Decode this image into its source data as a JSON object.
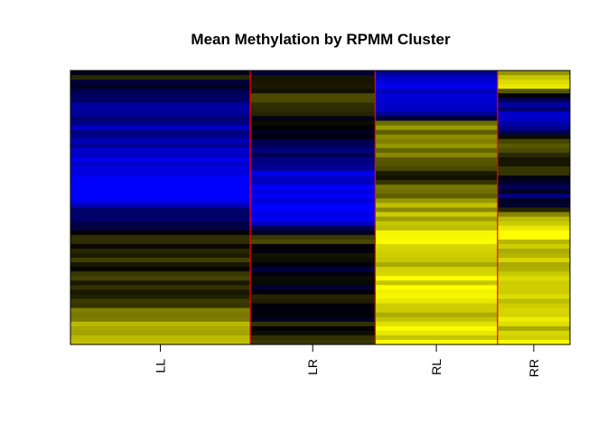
{
  "chart_data": {
    "type": "heatmap",
    "title": "Mean Methylation by RPMM Cluster",
    "xlabel": "",
    "ylabel": "",
    "columns": [
      {
        "label": "LL",
        "width_fraction": 0.36
      },
      {
        "label": "LR",
        "width_fraction": 0.25
      },
      {
        "label": "RL",
        "width_fraction": 0.245
      },
      {
        "label": "RR",
        "width_fraction": 0.145
      }
    ],
    "color_scale": {
      "low": "#0000ff",
      "mid": "#000000",
      "high": "#ffff00",
      "range": [
        0,
        1
      ]
    },
    "separator_color": "#ff0000",
    "row_count": 60,
    "rows_sorted_by": "LL",
    "profiles": {
      "LL": [
        [
          0,
          0.55
        ],
        [
          0.05,
          0.45
        ],
        [
          0.1,
          0.3
        ],
        [
          0.15,
          0.2
        ],
        [
          0.25,
          0.15
        ],
        [
          0.35,
          0.05
        ],
        [
          0.45,
          0.0
        ],
        [
          0.55,
          0.35
        ],
        [
          0.6,
          0.5
        ],
        [
          0.7,
          0.55
        ],
        [
          0.8,
          0.6
        ],
        [
          0.88,
          0.7
        ],
        [
          0.95,
          0.85
        ],
        [
          1,
          0.95
        ]
      ],
      "LR": [
        [
          0,
          0.45
        ],
        [
          0.05,
          0.55
        ],
        [
          0.1,
          0.6
        ],
        [
          0.15,
          0.58
        ],
        [
          0.25,
          0.4
        ],
        [
          0.35,
          0.15
        ],
        [
          0.45,
          0.0
        ],
        [
          0.55,
          0.05
        ],
        [
          0.6,
          0.6
        ],
        [
          0.7,
          0.45
        ],
        [
          0.8,
          0.48
        ],
        [
          0.9,
          0.5
        ],
        [
          1,
          0.6
        ]
      ],
      "RL": [
        [
          0,
          0.35
        ],
        [
          0.05,
          0.05
        ],
        [
          0.15,
          0.1
        ],
        [
          0.2,
          0.75
        ],
        [
          0.3,
          0.7
        ],
        [
          0.4,
          0.6
        ],
        [
          0.5,
          0.85
        ],
        [
          0.6,
          0.95
        ],
        [
          0.7,
          0.9
        ],
        [
          0.8,
          0.95
        ],
        [
          0.9,
          0.9
        ],
        [
          1,
          0.95
        ]
      ],
      "RR": [
        [
          0,
          0.8
        ],
        [
          0.05,
          1.0
        ],
        [
          0.1,
          0.3
        ],
        [
          0.2,
          0.1
        ],
        [
          0.25,
          0.7
        ],
        [
          0.35,
          0.6
        ],
        [
          0.4,
          0.5
        ],
        [
          0.45,
          0.3
        ],
        [
          0.5,
          0.45
        ],
        [
          0.55,
          0.95
        ],
        [
          0.6,
          1.0
        ],
        [
          0.65,
          0.85
        ],
        [
          0.75,
          0.95
        ],
        [
          0.85,
          0.9
        ],
        [
          1,
          0.9
        ]
      ]
    }
  }
}
